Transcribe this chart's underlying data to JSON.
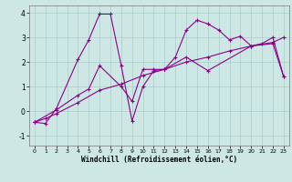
{
  "xlabel": "Windchill (Refroidissement éolien,°C)",
  "xlim": [
    -0.5,
    23.5
  ],
  "ylim": [
    -1.4,
    4.3
  ],
  "yticks": [
    -1,
    0,
    1,
    2,
    3,
    4
  ],
  "xticks": [
    0,
    1,
    2,
    3,
    4,
    5,
    6,
    7,
    8,
    9,
    10,
    11,
    12,
    13,
    14,
    15,
    16,
    17,
    18,
    19,
    20,
    21,
    22,
    23
  ],
  "bg_color": "#cde8e4",
  "line_color": "#8b008b",
  "grid_color": "#a8ccc8",
  "line1_x": [
    0,
    1,
    2,
    4,
    5,
    6,
    7,
    8,
    9,
    10,
    11,
    12,
    13,
    14,
    15,
    16,
    17,
    18,
    19,
    20,
    21,
    22,
    23
  ],
  "line1_y": [
    -0.45,
    -0.5,
    0.1,
    2.1,
    2.9,
    3.95,
    3.95,
    1.85,
    -0.4,
    1.0,
    1.65,
    1.7,
    2.2,
    3.3,
    3.7,
    3.55,
    3.3,
    2.9,
    3.05,
    2.65,
    2.75,
    3.0,
    1.4
  ],
  "line2_x": [
    0,
    2,
    4,
    5,
    6,
    8,
    9,
    10,
    11,
    12,
    14,
    16,
    20,
    22,
    23
  ],
  "line2_y": [
    -0.45,
    0.05,
    0.65,
    0.9,
    1.85,
    1.0,
    0.4,
    1.7,
    1.7,
    1.7,
    2.2,
    1.65,
    2.65,
    2.75,
    1.4
  ],
  "line3_x": [
    0,
    1,
    2,
    4,
    6,
    8,
    10,
    12,
    14,
    16,
    18,
    20,
    22,
    23
  ],
  "line3_y": [
    -0.45,
    -0.3,
    -0.1,
    0.35,
    0.85,
    1.1,
    1.45,
    1.7,
    2.0,
    2.2,
    2.45,
    2.65,
    2.8,
    3.0
  ]
}
